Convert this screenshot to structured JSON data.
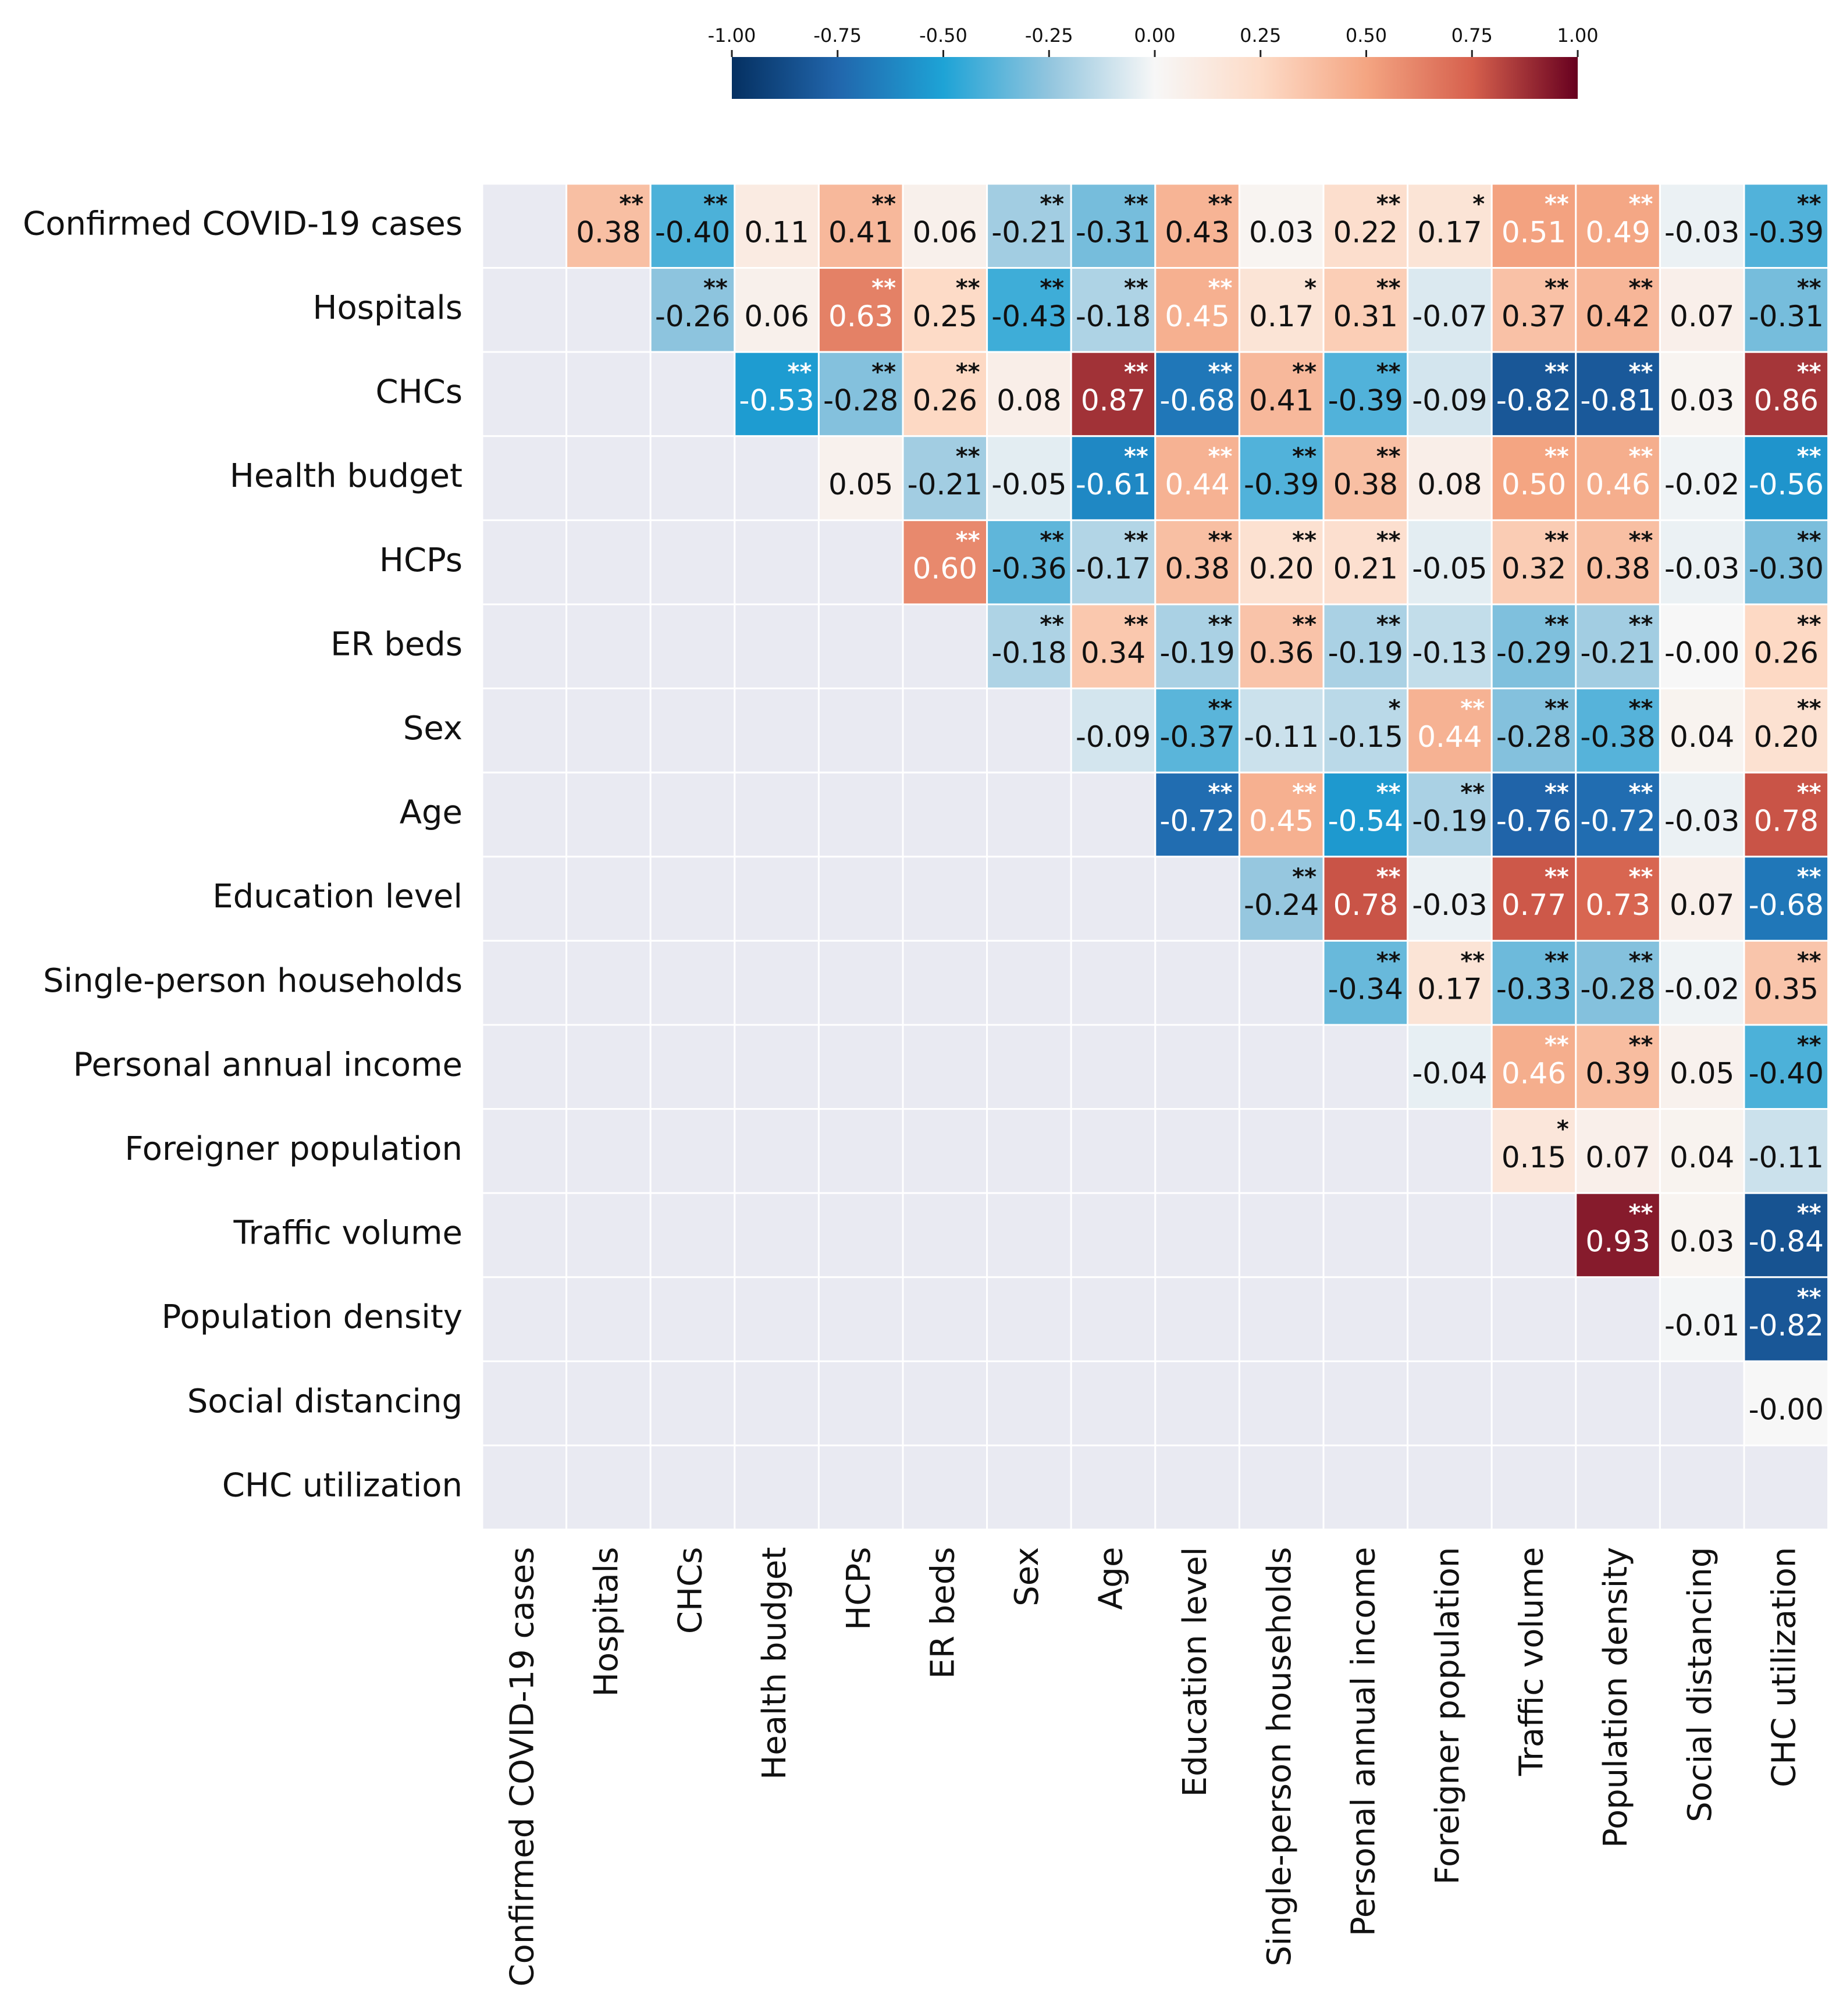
{
  "chart_data": {
    "type": "heatmap",
    "title": "",
    "xlabel": "",
    "ylabel": "",
    "grid": true,
    "colormap": "RdBu_r (diverging: blue = negative, red = positive)",
    "color_range": [
      -1.0,
      1.0
    ],
    "colorbar": {
      "position": "top",
      "ticks": [
        "-1.00",
        "-0.75",
        "-0.50",
        "-0.25",
        "0.00",
        "0.25",
        "0.50",
        "0.75",
        "1.00"
      ],
      "stops": [
        {
          "v": -1.0,
          "c": "#053061"
        },
        {
          "v": -0.75,
          "c": "#2166ac"
        },
        {
          "v": -0.5,
          "c": "#1ea3d6"
        },
        {
          "v": -0.25,
          "c": "#92c5de"
        },
        {
          "v": 0.0,
          "c": "#f7f7f7"
        },
        {
          "v": 0.25,
          "c": "#fddbc7"
        },
        {
          "v": 0.5,
          "c": "#f4a582"
        },
        {
          "v": 0.75,
          "c": "#d6604d"
        },
        {
          "v": 1.0,
          "c": "#67001f"
        }
      ]
    },
    "masked_color": "#e9eaf2",
    "variables": [
      "Confirmed COVID-19 cases",
      "Hospitals",
      "CHCs",
      "Health budget",
      "HCPs",
      "ER beds",
      "Sex",
      "Age",
      "Education level",
      "Single-person households",
      "Personal annual income",
      "Foreigner population",
      "Traffic volume",
      "Population density",
      "Social distancing",
      "CHC utilization"
    ],
    "cells": [
      [
        "0.38",
        "-0.40",
        "0.11",
        "0.41",
        "0.06",
        "-0.21",
        "-0.31",
        "0.43",
        "0.03",
        "0.22",
        "0.17",
        "0.51",
        "0.49",
        "-0.03",
        "-0.39"
      ],
      [
        "-0.26",
        "0.06",
        "0.63",
        "0.25",
        "-0.43",
        "-0.18",
        "0.45",
        "0.17",
        "0.31",
        "-0.07",
        "0.37",
        "0.42",
        "0.07",
        "-0.31"
      ],
      [
        "-0.53",
        "-0.28",
        "0.26",
        "0.08",
        "0.87",
        "-0.68",
        "0.41",
        "-0.39",
        "-0.09",
        "-0.82",
        "-0.81",
        "0.03",
        "0.86"
      ],
      [
        "0.05",
        "-0.21",
        "-0.05",
        "-0.61",
        "0.44",
        "-0.39",
        "0.38",
        "0.08",
        "0.50",
        "0.46",
        "-0.02",
        "-0.56"
      ],
      [
        "0.60",
        "-0.36",
        "-0.17",
        "0.38",
        "0.20",
        "0.21",
        "-0.05",
        "0.32",
        "0.38",
        "-0.03",
        "-0.30"
      ],
      [
        "-0.18",
        "0.34",
        "-0.19",
        "0.36",
        "-0.19",
        "-0.13",
        "-0.29",
        "-0.21",
        "-0.00",
        "0.26"
      ],
      [
        "-0.09",
        "-0.37",
        "-0.11",
        "-0.15",
        "0.44",
        "-0.28",
        "-0.38",
        "0.04",
        "0.20"
      ],
      [
        "-0.72",
        "0.45",
        "-0.54",
        "-0.19",
        "-0.76",
        "-0.72",
        "-0.03",
        "0.78"
      ],
      [
        "-0.24",
        "0.78",
        "-0.03",
        "0.77",
        "0.73",
        "0.07",
        "-0.68"
      ],
      [
        "-0.34",
        "0.17",
        "-0.33",
        "-0.28",
        "-0.02",
        "0.35"
      ],
      [
        "-0.04",
        "0.46",
        "0.39",
        "0.05",
        "-0.40"
      ],
      [
        "0.15",
        "0.07",
        "0.04",
        "-0.11"
      ],
      [
        "0.93",
        "0.03",
        "-0.84"
      ],
      [
        "-0.01",
        "-0.82"
      ],
      [
        "-0.00"
      ]
    ],
    "stars": [
      [
        "**",
        "**",
        "",
        "**",
        "",
        "**",
        "**",
        "**",
        "",
        "**",
        "*",
        "**",
        "**",
        "",
        "**"
      ],
      [
        "**",
        "",
        "**",
        "**",
        "**",
        "**",
        "**",
        "*",
        "**",
        "",
        "**",
        "**",
        "",
        "**"
      ],
      [
        "**",
        "**",
        "**",
        "",
        "**",
        "**",
        "**",
        "**",
        "",
        "**",
        "**",
        "",
        "**"
      ],
      [
        "",
        "**",
        "",
        "**",
        "**",
        "**",
        "**",
        "",
        "**",
        "**",
        "",
        "**"
      ],
      [
        "**",
        "**",
        "**",
        "**",
        "**",
        "**",
        "",
        "**",
        "**",
        "",
        "**"
      ],
      [
        "**",
        "**",
        "**",
        "**",
        "**",
        "",
        "**",
        "**",
        "",
        "**"
      ],
      [
        "",
        "**",
        "",
        "*",
        "**",
        "**",
        "**",
        "",
        "**"
      ],
      [
        "**",
        "**",
        "**",
        "**",
        "**",
        "**",
        "",
        "**"
      ],
      [
        "**",
        "**",
        "",
        "**",
        "**",
        "",
        "**"
      ],
      [
        "**",
        "**",
        "**",
        "**",
        "",
        "**"
      ],
      [
        "",
        "**",
        "**",
        "",
        "**"
      ],
      [
        "*",
        "",
        "",
        ""
      ],
      [
        "**",
        "",
        "**"
      ],
      [
        "",
        "**"
      ],
      [
        ""
      ]
    ]
  }
}
